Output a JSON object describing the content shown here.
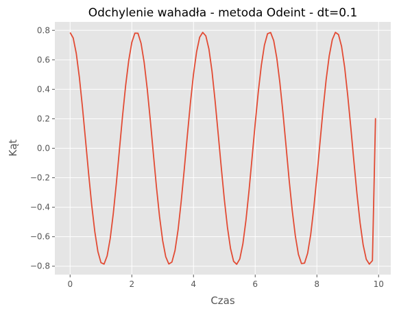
{
  "chart_data": {
    "type": "line",
    "title": "Odchylenie wahadła - metoda Odeint - dt=0.1",
    "xlabel": "Czas",
    "ylabel": "Kąt",
    "xlim": [
      -0.495,
      10.395
    ],
    "ylim": [
      -0.857,
      0.857
    ],
    "grid": true,
    "legend": "none",
    "colors": {
      "background": "#e5e5e5",
      "grid": "#ffffff",
      "line": "#e24a33",
      "tick_label": "#555555"
    },
    "x_ticks": [
      {
        "value": 0,
        "label": "0"
      },
      {
        "value": 2,
        "label": "2"
      },
      {
        "value": 4,
        "label": "4"
      },
      {
        "value": 6,
        "label": "6"
      },
      {
        "value": 8,
        "label": "8"
      },
      {
        "value": 10,
        "label": "10"
      }
    ],
    "y_ticks": [
      {
        "value": 0.8,
        "label": "0.8"
      },
      {
        "value": 0.6,
        "label": "0.6"
      },
      {
        "value": 0.4,
        "label": "0.4"
      },
      {
        "value": 0.2,
        "label": "0.2"
      },
      {
        "value": 0.0,
        "label": "0.0"
      },
      {
        "value": -0.2,
        "label": "−0.2"
      },
      {
        "value": -0.4,
        "label": "−0.4"
      },
      {
        "value": -0.6,
        "label": "−0.6"
      },
      {
        "value": -0.8,
        "label": "−0.8"
      }
    ],
    "series": [
      {
        "x": [
          0.0,
          0.1,
          0.2,
          0.3,
          0.4,
          0.5,
          0.6,
          0.7,
          0.8,
          0.9,
          1.0,
          1.1,
          1.2,
          1.3,
          1.4,
          1.5,
          1.6,
          1.7,
          1.8,
          1.9,
          2.0,
          2.1,
          2.2,
          2.3,
          2.4,
          2.5,
          2.6,
          2.7,
          2.8,
          2.9,
          3.0,
          3.1,
          3.2,
          3.3,
          3.4,
          3.5,
          3.6,
          3.7,
          3.8,
          3.9,
          4.0,
          4.1,
          4.2,
          4.3,
          4.4,
          4.5,
          4.6,
          4.7,
          4.8,
          4.9,
          5.0,
          5.1,
          5.2,
          5.3,
          5.4,
          5.5,
          5.6,
          5.7,
          5.8,
          5.9,
          6.0,
          6.1,
          6.2,
          6.3,
          6.4,
          6.5,
          6.6,
          6.7,
          6.8,
          6.9,
          7.0,
          7.1,
          7.2,
          7.3,
          7.4,
          7.5,
          7.6,
          7.7,
          7.8,
          7.9,
          8.0,
          8.1,
          8.2,
          8.3,
          8.4,
          8.5,
          8.6,
          8.7,
          8.8,
          8.9,
          9.0,
          9.1,
          9.2,
          9.3,
          9.4,
          9.5,
          9.6,
          9.7,
          9.8,
          9.9
        ],
        "values": [
          0.785,
          0.748,
          0.643,
          0.481,
          0.279,
          0.055,
          -0.172,
          -0.385,
          -0.565,
          -0.7,
          -0.776,
          -0.786,
          -0.73,
          -0.612,
          -0.442,
          -0.235,
          -0.007,
          0.219,
          0.425,
          0.595,
          0.718,
          0.781,
          0.78,
          0.712,
          0.583,
          0.403,
          0.19,
          -0.04,
          -0.265,
          -0.465,
          -0.626,
          -0.736,
          -0.785,
          -0.772,
          -0.694,
          -0.553,
          -0.362,
          -0.144,
          0.086,
          0.308,
          0.503,
          0.654,
          0.753,
          0.786,
          0.762,
          0.673,
          0.522,
          0.321,
          0.098,
          -0.13,
          -0.348,
          -0.536,
          -0.68,
          -0.767,
          -0.787,
          -0.751,
          -0.649,
          -0.489,
          -0.287,
          -0.061,
          0.168,
          0.382,
          0.564,
          0.7,
          0.777,
          0.785,
          0.73,
          0.612,
          0.444,
          0.24,
          0.015,
          -0.214,
          -0.421,
          -0.593,
          -0.719,
          -0.782,
          -0.779,
          -0.712,
          -0.584,
          -0.404,
          -0.191,
          0.038,
          0.263,
          0.465,
          0.627,
          0.737,
          0.786,
          0.771,
          0.691,
          0.549,
          0.357,
          0.14,
          -0.09,
          -0.311,
          -0.505,
          -0.656,
          -0.753,
          -0.786,
          -0.762,
          0.204
        ]
      }
    ]
  }
}
